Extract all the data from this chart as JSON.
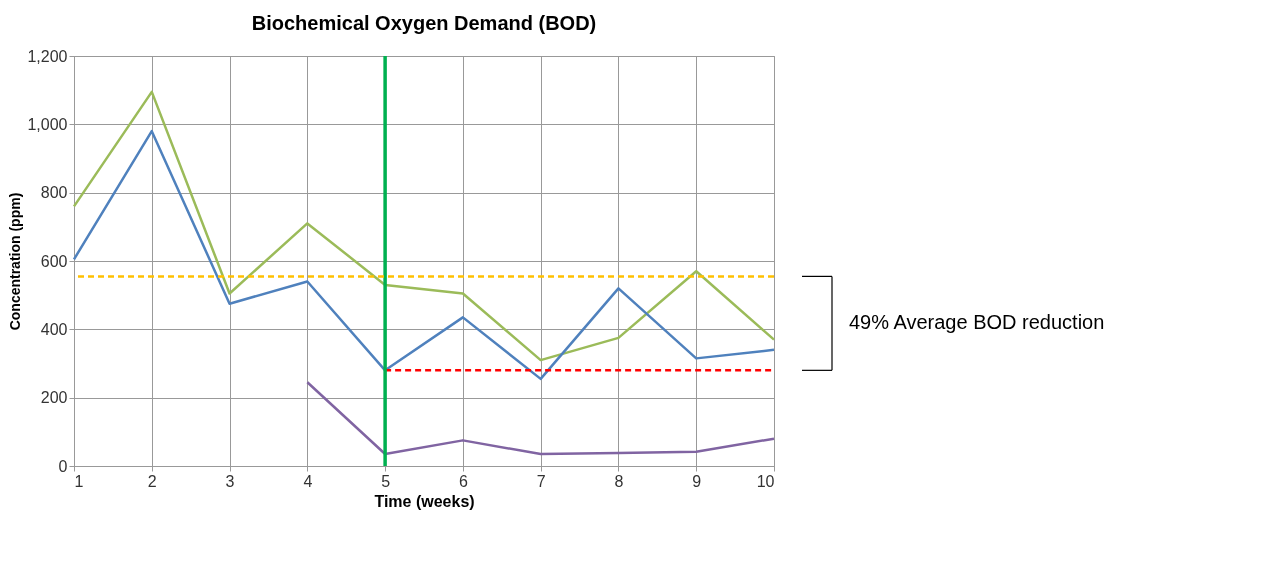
{
  "chart_data": {
    "type": "line",
    "title": "Biochemical Oxygen Demand (BOD)",
    "xlabel": "Time (weeks)",
    "ylabel": "Concentration (ppm)",
    "x": [
      1,
      2,
      3,
      4,
      5,
      6,
      7,
      8,
      9,
      10
    ],
    "series": [
      {
        "color": "#9bbb59",
        "values": [
          760,
          1095,
          505,
          710,
          530,
          505,
          310,
          375,
          570,
          370
        ]
      },
      {
        "color": "#4f81bd",
        "values": [
          605,
          980,
          475,
          540,
          280,
          435,
          255,
          520,
          315,
          340
        ]
      },
      {
        "color": "#8064a2",
        "values": [
          null,
          null,
          null,
          245,
          35,
          75,
          35,
          38,
          42,
          80
        ]
      },
      {
        "color": "#ff0000",
        "x": [
          5,
          10
        ],
        "values": [
          280,
          280
        ],
        "line_style": "dashed"
      }
    ],
    "ref_lines": [
      {
        "axis": "x",
        "value": 5,
        "color": "#00b050",
        "line_style": "solid"
      },
      {
        "axis": "y",
        "value": 555,
        "color": "#ffc000",
        "line_style": "dashed"
      }
    ],
    "annotations": [
      "49% Average BOD reduction"
    ],
    "xlim": [
      1,
      10
    ],
    "xticks": [
      1,
      2,
      3,
      4,
      5,
      6,
      7,
      8,
      9,
      10
    ],
    "ylim": [
      0,
      1200
    ],
    "yticks": [
      0,
      200,
      400,
      600,
      800,
      {
        "value": 1000,
        "label": "1,000"
      },
      {
        "value": 1200,
        "label": "1,200"
      }
    ],
    "grid": true
  }
}
